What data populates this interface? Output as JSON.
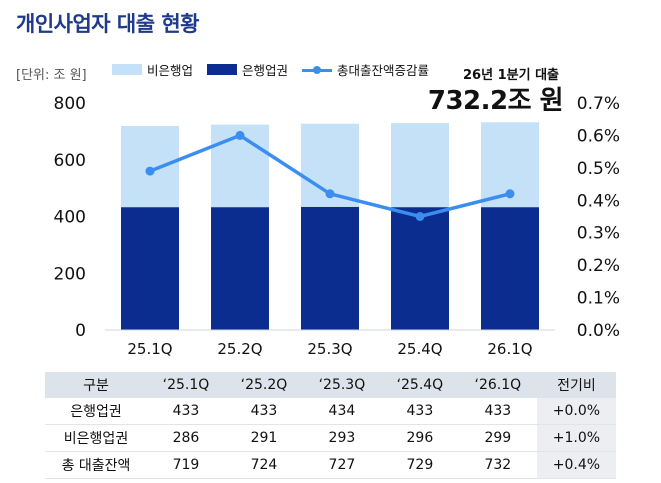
{
  "title": "개인사업자 대출 현황",
  "unit_label": "[단위: 조 원]",
  "callout": {
    "label": "26년 1분기 대출",
    "value": "732.2조 원"
  },
  "colors": {
    "title": "#1f3a8a",
    "non_bank": "#c5e1f8",
    "bank": "#0a2d8f",
    "line": "#3b8ef0"
  },
  "chart_data": {
    "type": "bar",
    "stacked": true,
    "categories": [
      "25.1Q",
      "25.2Q",
      "25.3Q",
      "25.4Q",
      "26.1Q"
    ],
    "series": [
      {
        "name": "은행업권",
        "values": [
          433,
          433,
          434,
          433,
          433
        ],
        "color": "#0a2d8f"
      },
      {
        "name": "비은행업권",
        "values": [
          286,
          291,
          293,
          296,
          299
        ],
        "color": "#c5e1f8"
      }
    ],
    "line_series": {
      "name": "총대출잔액증감률",
      "values": [
        0.49,
        0.6,
        0.42,
        0.35,
        0.42
      ],
      "color": "#3b8ef0",
      "axis": "right"
    },
    "legend": [
      "비은행업",
      "은행업권",
      "총대출잔액증감률"
    ],
    "ylim": [
      0,
      800
    ],
    "yticks": [
      "0",
      "200",
      "400",
      "600",
      "800"
    ],
    "y2lim": [
      0,
      0.7
    ],
    "y2ticks": [
      "0.0%",
      "0.1%",
      "0.2%",
      "0.3%",
      "0.4%",
      "0.5%",
      "0.6%",
      "0.7%"
    ],
    "grid": false,
    "legend_position": "top-left"
  },
  "table": {
    "headers": [
      "구분",
      "‘25.1Q",
      "‘25.2Q",
      "‘25.3Q",
      "‘25.4Q",
      "‘26.1Q",
      "전기비"
    ],
    "rows": [
      [
        "은행업권",
        "433",
        "433",
        "434",
        "433",
        "433",
        "+0.0%"
      ],
      [
        "비은행업권",
        "286",
        "291",
        "293",
        "296",
        "299",
        "+1.0%"
      ],
      [
        "총 대출잔액",
        "719",
        "724",
        "727",
        "729",
        "732",
        "+0.4%"
      ]
    ]
  }
}
